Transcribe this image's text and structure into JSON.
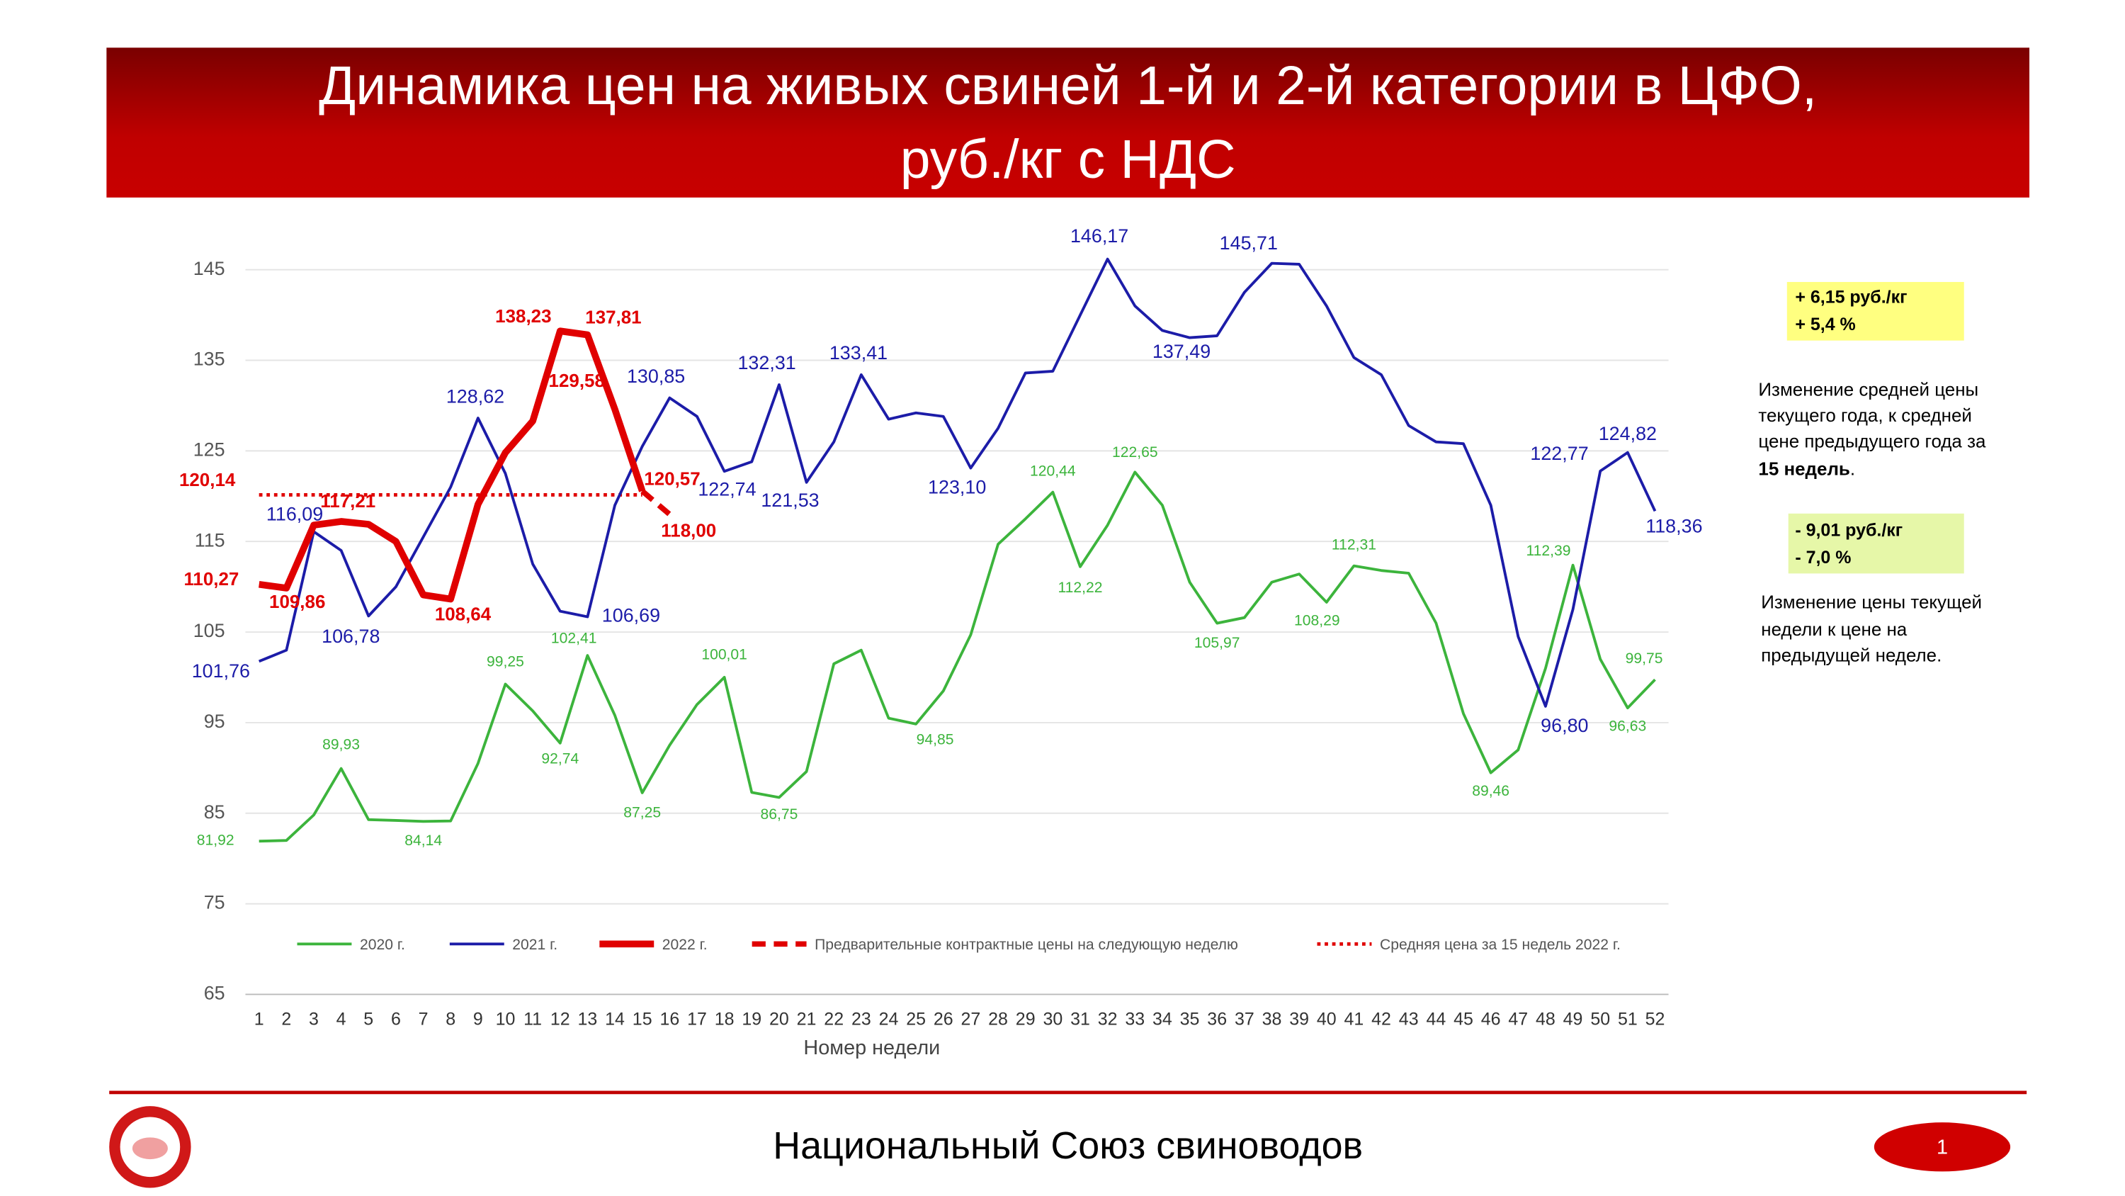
{
  "header": {
    "title_lines": [
      "Динамика цен на живых свиней 1-й и 2-й категории в ЦФО,",
      "руб./кг с НДС"
    ]
  },
  "chart_data": {
    "type": "line",
    "categories": [
      1,
      2,
      3,
      4,
      5,
      6,
      7,
      8,
      9,
      10,
      11,
      12,
      13,
      14,
      15,
      16,
      17,
      18,
      19,
      20,
      21,
      22,
      23,
      24,
      25,
      26,
      27,
      28,
      29,
      30,
      31,
      32,
      33,
      34,
      35,
      36,
      37,
      38,
      39,
      40,
      41,
      42,
      43,
      44,
      45,
      46,
      47,
      48,
      49,
      50,
      51,
      52
    ],
    "x_label": "Номер недели",
    "ylim": [
      65,
      145
    ],
    "yticks": [
      65,
      75,
      85,
      95,
      105,
      115,
      125,
      135,
      145
    ],
    "grid": true,
    "series": [
      {
        "name": "2020 г.",
        "color": "#3cb43c",
        "style": "solid",
        "width": 2,
        "values": [
          81.92,
          82.0,
          84.8,
          89.93,
          84.3,
          84.2,
          84.1,
          84.14,
          90.5,
          99.25,
          96.3,
          92.74,
          102.41,
          95.8,
          87.25,
          92.5,
          97.0,
          100.01,
          87.3,
          86.75,
          89.6,
          101.5,
          103.0,
          95.5,
          94.85,
          98.5,
          104.7,
          114.7,
          117.5,
          120.44,
          112.22,
          116.8,
          122.65,
          119.0,
          110.5,
          105.97,
          106.6,
          110.5,
          111.4,
          108.29,
          112.31,
          111.8,
          111.5,
          106.0,
          96.0,
          89.46,
          92.0,
          101.0,
          112.39,
          102.0,
          96.63,
          99.75
        ],
        "value_labels": [
          "81,92",
          null,
          null,
          "89,93",
          null,
          null,
          null,
          "84,14",
          null,
          "99,25",
          null,
          "92,74",
          "102,41",
          null,
          "87,25",
          null,
          null,
          "100,01",
          null,
          "86,75",
          null,
          null,
          null,
          null,
          "94,85",
          null,
          null,
          null,
          null,
          "120,44",
          "112,22",
          null,
          "122,65",
          null,
          null,
          "105,97",
          null,
          null,
          null,
          "108,29",
          "112,31",
          null,
          null,
          null,
          null,
          "89,46",
          null,
          null,
          "112,39",
          null,
          "96,63",
          "99,75"
        ]
      },
      {
        "name": "2021 г.",
        "color": "#1c1ca8",
        "style": "solid",
        "width": 2,
        "values": [
          101.76,
          103.0,
          116.09,
          114.0,
          106.78,
          110.0,
          115.5,
          121.0,
          128.62,
          122.5,
          112.5,
          107.3,
          106.69,
          119.0,
          125.5,
          130.85,
          128.8,
          122.74,
          123.8,
          132.31,
          121.53,
          126.0,
          133.41,
          128.5,
          129.2,
          128.8,
          123.1,
          127.5,
          133.6,
          133.8,
          140.0,
          146.17,
          141.0,
          138.3,
          137.49,
          137.7,
          142.5,
          145.71,
          145.6,
          141.0,
          135.3,
          133.4,
          127.8,
          126.0,
          125.8,
          119.0,
          104.5,
          96.8,
          107.5,
          122.77,
          124.82,
          118.36
        ],
        "value_labels": [
          "101,76",
          null,
          "116,09",
          null,
          "106,78",
          null,
          null,
          null,
          "128,62",
          null,
          null,
          null,
          "106,69",
          null,
          null,
          "130,85",
          null,
          "122,74",
          null,
          "132,31",
          "121,53",
          null,
          "133,41",
          null,
          null,
          null,
          "123,10",
          null,
          null,
          null,
          null,
          "146,17",
          null,
          null,
          "137,49",
          null,
          null,
          "145,71",
          null,
          null,
          null,
          null,
          null,
          null,
          null,
          null,
          null,
          "96,80",
          null,
          "122,77",
          "124,82",
          "118,36"
        ]
      },
      {
        "name": "2022 г.",
        "color": "#e00000",
        "style": "solid",
        "width": 5,
        "values": [
          110.27,
          109.86,
          116.8,
          117.21,
          116.9,
          115.0,
          109.1,
          108.64,
          119.1,
          124.8,
          128.3,
          138.23,
          137.81,
          129.58,
          120.57,
          null,
          null,
          null,
          null,
          null,
          null,
          null,
          null,
          null,
          null,
          null,
          null,
          null,
          null,
          null,
          null,
          null,
          null,
          null,
          null,
          null,
          null,
          null,
          null,
          null,
          null,
          null,
          null,
          null,
          null,
          null,
          null,
          null,
          null,
          null,
          null,
          null
        ],
        "value_labels": [
          "110,27",
          "109,86",
          null,
          "117,21",
          null,
          null,
          null,
          "108,64",
          null,
          null,
          null,
          "138,23",
          "137,81",
          "129,58",
          "120,57",
          null,
          null,
          null,
          null,
          null,
          null,
          null,
          null,
          null,
          null,
          null,
          null,
          null,
          null,
          null,
          null,
          null,
          null,
          null,
          null,
          null,
          null,
          null,
          null,
          null,
          null,
          null,
          null,
          null,
          null,
          null,
          null,
          null,
          null,
          null,
          null,
          null
        ]
      },
      {
        "name": "Предварительные контрактные цены на следующую неделю",
        "color": "#e00000",
        "style": "dashed",
        "width": 4,
        "values": [
          null,
          null,
          null,
          null,
          null,
          null,
          null,
          null,
          null,
          null,
          null,
          null,
          null,
          null,
          120.57,
          118.0,
          null,
          null,
          null,
          null,
          null,
          null,
          null,
          null,
          null,
          null,
          null,
          null,
          null,
          null,
          null,
          null,
          null,
          null,
          null,
          null,
          null,
          null,
          null,
          null,
          null,
          null,
          null,
          null,
          null,
          null,
          null,
          null,
          null,
          null,
          null,
          null
        ],
        "value_labels": [
          null,
          null,
          null,
          null,
          null,
          null,
          null,
          null,
          null,
          null,
          null,
          null,
          null,
          null,
          null,
          "118,00",
          null,
          null,
          null,
          null,
          null,
          null,
          null,
          null,
          null,
          null,
          null,
          null,
          null,
          null,
          null,
          null,
          null,
          null,
          null,
          null,
          null,
          null,
          null,
          null,
          null,
          null,
          null,
          null,
          null,
          null,
          null,
          null,
          null,
          null,
          null,
          null
        ]
      },
      {
        "name": "Средняя цена за 15 недель 2022 г.",
        "color": "#e00000",
        "style": "dotted",
        "width": 2.5,
        "values": [
          120.14,
          120.14,
          120.14,
          120.14,
          120.14,
          120.14,
          120.14,
          120.14,
          120.14,
          120.14,
          120.14,
          120.14,
          120.14,
          120.14,
          120.14,
          null,
          null,
          null,
          null,
          null,
          null,
          null,
          null,
          null,
          null,
          null,
          null,
          null,
          null,
          null,
          null,
          null,
          null,
          null,
          null,
          null,
          null,
          null,
          null,
          null,
          null,
          null,
          null,
          null,
          null,
          null,
          null,
          null,
          null,
          null,
          null,
          null
        ],
        "value_labels": [
          "120,14",
          null,
          null,
          null,
          null,
          null,
          null,
          null,
          null,
          null,
          null,
          null,
          null,
          null,
          null,
          null,
          null,
          null,
          null,
          null,
          null,
          null,
          null,
          null,
          null,
          null,
          null,
          null,
          null,
          null,
          null,
          null,
          null,
          null,
          null,
          null,
          null,
          null,
          null,
          null,
          null,
          null,
          null,
          null,
          null,
          null,
          null,
          null,
          null,
          null,
          null,
          null
        ]
      }
    ]
  },
  "notes": {
    "avg_box": [
      "+ 6,15 руб./кг",
      "+ 5,4 %"
    ],
    "avg_text": [
      "Изменение средней цены",
      "текущего года, к средней",
      "цене предыдущего года за"
    ],
    "avg_text_bold": "15 недель",
    "avg_text_end": ".",
    "week_box": [
      "- 9,01 руб./кг",
      "- 7,0 %"
    ],
    "week_text": [
      "Изменение цены текущей",
      "недели к цене на",
      "предыдущей неделе."
    ]
  },
  "footer": {
    "org": "Национальный Союз свиноводов",
    "page": "1"
  }
}
